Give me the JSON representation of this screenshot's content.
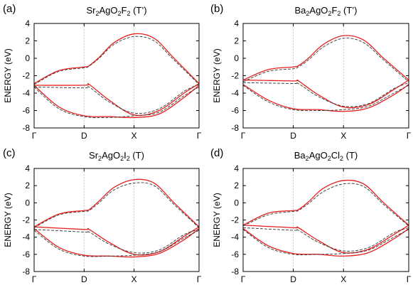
{
  "chart_data": [
    {
      "type": "line",
      "panel_label": "(a)",
      "title": {
        "parts": [
          {
            "t": "Sr"
          },
          {
            "t": "2",
            "sub": true
          },
          {
            "t": "AgO"
          },
          {
            "t": "2",
            "sub": true
          },
          {
            "t": "F"
          },
          {
            "t": "2",
            "sub": true
          },
          {
            "t": " (T’)"
          }
        ]
      },
      "ylabel": "ENERGY (eV)",
      "ylim": [
        -8,
        4
      ],
      "yticks": [
        "-8",
        "-6",
        "-4",
        "-2",
        "0",
        "2",
        "4"
      ],
      "xticks": [
        "Γ",
        "D",
        "X",
        "Γ"
      ],
      "xlim": [
        0,
        3.3
      ],
      "xtick_positions": [
        0,
        1,
        2,
        3.3
      ],
      "vlines": [
        1,
        2
      ],
      "series": [
        {
          "color": "#e8201f",
          "style": "solid",
          "x": [
            0,
            0.5,
            1,
            1.1,
            1.3,
            1.6,
            2,
            2.4,
            2.8,
            3.3
          ],
          "y": [
            -2.9,
            -1.4,
            -1.0,
            -0.85,
            0.1,
            1.8,
            2.8,
            2.3,
            0.0,
            -2.9
          ]
        },
        {
          "color": "#e8201f",
          "style": "solid",
          "x": [
            0,
            1,
            1.1,
            1.5,
            2,
            2.5,
            3.0,
            3.3
          ],
          "y": [
            -3.1,
            -3.1,
            -3.0,
            -4.8,
            -6.5,
            -6.0,
            -4.0,
            -2.9
          ]
        },
        {
          "color": "#e8201f",
          "style": "solid",
          "x": [
            0,
            0.5,
            1,
            1.5,
            2,
            2.5,
            3.0,
            3.3
          ],
          "y": [
            -3.1,
            -5.6,
            -6.6,
            -6.7,
            -6.8,
            -6.4,
            -4.5,
            -3.1
          ]
        },
        {
          "color": "#333333",
          "style": "dashed",
          "x": [
            0,
            0.5,
            1,
            1.1,
            1.3,
            1.6,
            2,
            2.4,
            2.8,
            3.3
          ],
          "y": [
            -3.0,
            -1.5,
            -1.1,
            -0.9,
            0.0,
            1.6,
            2.5,
            2.0,
            -0.2,
            -3.0
          ]
        },
        {
          "color": "#333333",
          "style": "dashed",
          "x": [
            0,
            1,
            1.1,
            1.5,
            2,
            2.5,
            3.0,
            3.3
          ],
          "y": [
            -3.3,
            -3.4,
            -3.3,
            -5.0,
            -6.3,
            -5.8,
            -3.8,
            -3.0
          ]
        },
        {
          "color": "#333333",
          "style": "dashed",
          "x": [
            0,
            0.5,
            1,
            1.5,
            2,
            2.5,
            3.0,
            3.3
          ],
          "y": [
            -3.3,
            -5.8,
            -6.7,
            -6.8,
            -6.6,
            -6.2,
            -4.3,
            -3.3
          ]
        }
      ]
    },
    {
      "type": "line",
      "panel_label": "(b)",
      "title": {
        "parts": [
          {
            "t": "Ba"
          },
          {
            "t": "2",
            "sub": true
          },
          {
            "t": "AgO"
          },
          {
            "t": "2",
            "sub": true
          },
          {
            "t": "F"
          },
          {
            "t": "2",
            "sub": true
          },
          {
            "t": " (T’)"
          }
        ]
      },
      "ylabel": "ENERGY (eV)",
      "ylim": [
        -8,
        4
      ],
      "yticks": [
        "-8",
        "-6",
        "-4",
        "-2",
        "0",
        "2",
        "4"
      ],
      "xticks": [
        "Γ",
        "D",
        "X",
        "Γ"
      ],
      "xlim": [
        0,
        3.3
      ],
      "xtick_positions": [
        0,
        1,
        2,
        3.3
      ],
      "vlines": [
        1,
        2
      ],
      "series": [
        {
          "color": "#e8201f",
          "style": "solid",
          "x": [
            0,
            0.5,
            1,
            1.1,
            1.3,
            1.6,
            2,
            2.4,
            2.8,
            3.3
          ],
          "y": [
            -2.5,
            -1.3,
            -1.0,
            -0.85,
            0.0,
            1.6,
            2.6,
            2.1,
            0.0,
            -2.5
          ]
        },
        {
          "color": "#e8201f",
          "style": "solid",
          "x": [
            0,
            1,
            1.1,
            1.5,
            2,
            2.5,
            3.0,
            3.3
          ],
          "y": [
            -2.5,
            -2.6,
            -2.6,
            -4.2,
            -5.6,
            -5.3,
            -3.6,
            -2.5
          ]
        },
        {
          "color": "#e8201f",
          "style": "solid",
          "x": [
            0,
            0.5,
            1,
            1.5,
            2,
            2.5,
            3.0,
            3.3
          ],
          "y": [
            -3.0,
            -4.8,
            -5.8,
            -5.9,
            -6.1,
            -5.7,
            -4.2,
            -3.0
          ]
        },
        {
          "color": "#333333",
          "style": "dashed",
          "x": [
            0,
            0.5,
            1,
            1.1,
            1.3,
            1.6,
            2,
            2.4,
            2.8,
            3.3
          ],
          "y": [
            -2.7,
            -1.5,
            -1.2,
            -1.0,
            -0.2,
            1.3,
            2.3,
            1.8,
            -0.2,
            -2.7
          ]
        },
        {
          "color": "#333333",
          "style": "dashed",
          "x": [
            0,
            1,
            1.1,
            1.5,
            2,
            2.5,
            3.0,
            3.3
          ],
          "y": [
            -2.8,
            -2.9,
            -2.9,
            -4.4,
            -5.5,
            -5.2,
            -3.5,
            -2.8
          ]
        },
        {
          "color": "#333333",
          "style": "dashed",
          "x": [
            0,
            0.5,
            1,
            1.5,
            2,
            2.5,
            3.0,
            3.3
          ],
          "y": [
            -3.1,
            -5.0,
            -5.9,
            -6.0,
            -5.9,
            -5.5,
            -4.0,
            -3.1
          ]
        }
      ]
    },
    {
      "type": "line",
      "panel_label": "(c)",
      "title": {
        "parts": [
          {
            "t": "Sr"
          },
          {
            "t": "2",
            "sub": true
          },
          {
            "t": "AgO"
          },
          {
            "t": "2",
            "sub": true
          },
          {
            "t": "I"
          },
          {
            "t": "2",
            "sub": true
          },
          {
            "t": " (T)"
          }
        ]
      },
      "ylabel": "ENERGY (eV)",
      "ylim": [
        -8,
        4
      ],
      "yticks": [
        "-8",
        "-6",
        "-4",
        "-2",
        "0",
        "2",
        "4"
      ],
      "xticks": [
        "Γ",
        "D",
        "X",
        "Γ"
      ],
      "xlim": [
        0,
        3.3
      ],
      "xtick_positions": [
        0,
        1,
        2,
        3.3
      ],
      "vlines": [
        1,
        2
      ],
      "series": [
        {
          "color": "#e8201f",
          "style": "solid",
          "x": [
            0,
            0.5,
            1,
            1.1,
            1.3,
            1.6,
            2,
            2.4,
            2.8,
            3.3
          ],
          "y": [
            -2.8,
            -1.3,
            -0.9,
            -0.8,
            0.2,
            1.8,
            2.7,
            2.3,
            0.0,
            -2.8
          ]
        },
        {
          "color": "#e8201f",
          "style": "solid",
          "x": [
            0,
            1,
            1.1,
            1.5,
            2,
            2.5,
            3.0,
            3.3
          ],
          "y": [
            -2.8,
            -3.1,
            -3.1,
            -4.6,
            -6.0,
            -5.7,
            -3.9,
            -2.8
          ]
        },
        {
          "color": "#e8201f",
          "style": "solid",
          "x": [
            0,
            0.5,
            1,
            1.5,
            2,
            2.5,
            3.0,
            3.3
          ],
          "y": [
            -3.0,
            -5.2,
            -6.1,
            -6.2,
            -6.3,
            -5.9,
            -4.3,
            -3.0
          ]
        },
        {
          "color": "#333333",
          "style": "dashed",
          "x": [
            0,
            0.5,
            1,
            1.1,
            1.3,
            1.6,
            2,
            2.4,
            2.8,
            3.3
          ],
          "y": [
            -2.9,
            -1.4,
            -1.0,
            -0.9,
            0.0,
            1.5,
            2.3,
            2.0,
            -0.2,
            -2.9
          ]
        },
        {
          "color": "#333333",
          "style": "dashed",
          "x": [
            0,
            1,
            1.1,
            1.5,
            2,
            2.5,
            3.0,
            3.3
          ],
          "y": [
            -3.1,
            -3.4,
            -3.4,
            -4.8,
            -5.8,
            -5.5,
            -3.7,
            -3.1
          ]
        },
        {
          "color": "#333333",
          "style": "dashed",
          "x": [
            0,
            0.5,
            1,
            1.5,
            2,
            2.5,
            3.0,
            3.3
          ],
          "y": [
            -3.2,
            -5.4,
            -6.2,
            -6.2,
            -6.1,
            -5.7,
            -4.1,
            -3.2
          ]
        }
      ]
    },
    {
      "type": "line",
      "panel_label": "(d)",
      "title": {
        "parts": [
          {
            "t": "Ba"
          },
          {
            "t": "2",
            "sub": true
          },
          {
            "t": "AgO"
          },
          {
            "t": "2",
            "sub": true
          },
          {
            "t": "Cl"
          },
          {
            "t": "2",
            "sub": true
          },
          {
            "t": " (T)"
          }
        ]
      },
      "ylabel": "ENERGY (eV)",
      "ylim": [
        -8,
        4
      ],
      "yticks": [
        "-8",
        "-6",
        "-4",
        "-2",
        "0",
        "2",
        "4"
      ],
      "xticks": [
        "Γ",
        "D",
        "X",
        "Γ"
      ],
      "xlim": [
        0,
        3.3
      ],
      "xtick_positions": [
        0,
        1,
        2,
        3.3
      ],
      "vlines": [
        1,
        2
      ],
      "series": [
        {
          "color": "#e8201f",
          "style": "solid",
          "x": [
            0,
            0.5,
            1,
            1.1,
            1.3,
            1.6,
            2,
            2.4,
            2.8,
            3.3
          ],
          "y": [
            -2.6,
            -1.2,
            -0.9,
            -0.8,
            0.1,
            1.7,
            2.6,
            2.2,
            0.0,
            -2.6
          ]
        },
        {
          "color": "#e8201f",
          "style": "solid",
          "x": [
            0,
            1,
            1.1,
            1.5,
            2,
            2.5,
            3.0,
            3.3
          ],
          "y": [
            -2.6,
            -2.9,
            -2.9,
            -4.4,
            -5.8,
            -5.4,
            -3.7,
            -2.6
          ]
        },
        {
          "color": "#e8201f",
          "style": "solid",
          "x": [
            0,
            0.5,
            1,
            1.5,
            2,
            2.5,
            3.0,
            3.3
          ],
          "y": [
            -3.0,
            -5.0,
            -5.9,
            -6.0,
            -6.2,
            -5.8,
            -4.2,
            -3.0
          ]
        },
        {
          "color": "#333333",
          "style": "dashed",
          "x": [
            0,
            0.5,
            1,
            1.1,
            1.3,
            1.6,
            2,
            2.4,
            2.8,
            3.3
          ],
          "y": [
            -2.7,
            -1.4,
            -1.0,
            -0.9,
            -0.1,
            1.3,
            2.2,
            1.9,
            -0.2,
            -2.7
          ]
        },
        {
          "color": "#333333",
          "style": "dashed",
          "x": [
            0,
            1,
            1.1,
            1.5,
            2,
            2.5,
            3.0,
            3.3
          ],
          "y": [
            -2.9,
            -3.2,
            -3.2,
            -4.6,
            -5.6,
            -5.2,
            -3.5,
            -2.9
          ]
        },
        {
          "color": "#333333",
          "style": "dashed",
          "x": [
            0,
            0.5,
            1,
            1.5,
            2,
            2.5,
            3.0,
            3.3
          ],
          "y": [
            -3.1,
            -5.2,
            -6.0,
            -6.0,
            -5.9,
            -5.5,
            -4.0,
            -3.1
          ]
        }
      ]
    }
  ]
}
